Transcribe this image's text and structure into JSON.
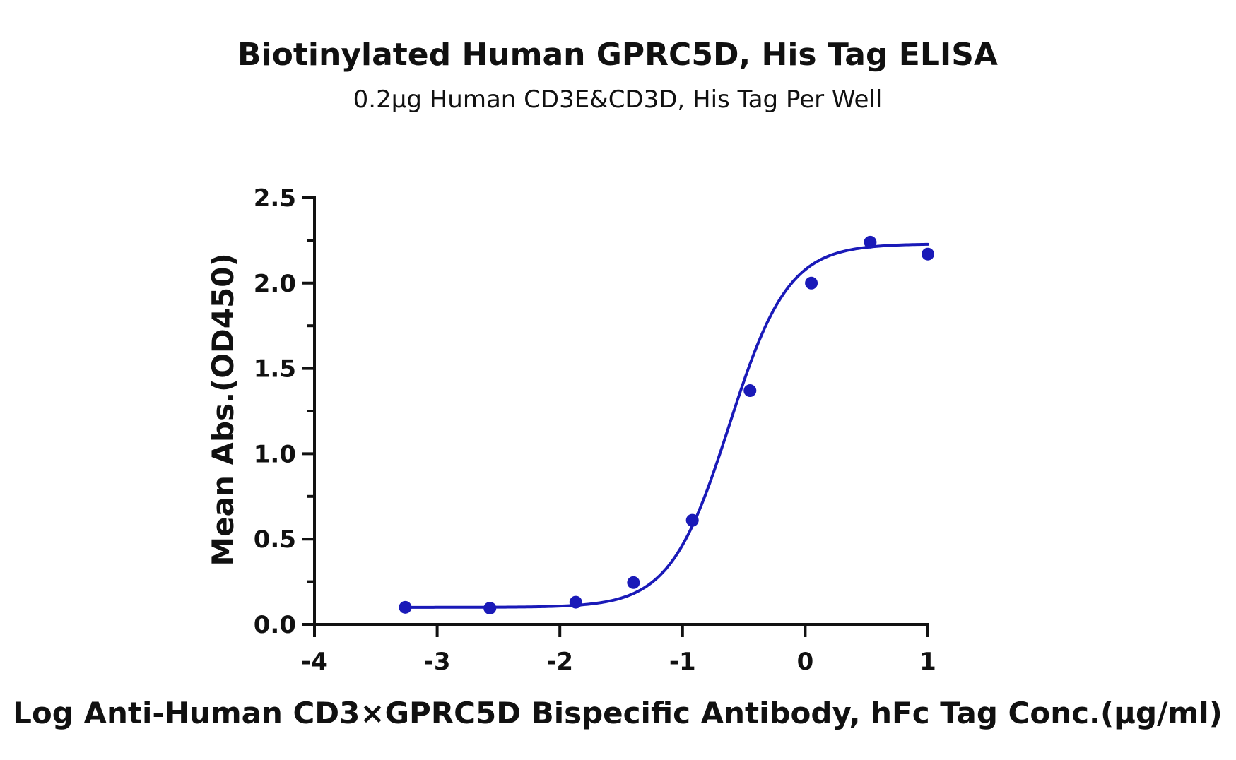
{
  "chart_data": {
    "type": "scatter",
    "title": "Biotinylated Human GPRC5D, His Tag ELISA",
    "subtitle": "0.2μg Human CD3E&CD3D, His Tag Per Well",
    "xlabel": "Log Anti-Human CD3×GPRC5D Bispecific Antibody, hFc Tag Conc.(μg/ml)",
    "ylabel": "Mean Abs.(OD450)",
    "xlim": [
      -4,
      1
    ],
    "ylim": [
      0,
      2.5
    ],
    "x_ticks": [
      "-4",
      "-3",
      "-2",
      "-1",
      "0",
      "1"
    ],
    "y_ticks": [
      "0.0",
      "0.5",
      "1.0",
      "1.5",
      "2.0",
      "2.5"
    ],
    "grid": false,
    "legend": "none",
    "color": "#1a1ab8",
    "series": [
      {
        "x": [
          -3.26,
          -2.57,
          -1.87,
          -1.4,
          -0.92,
          -0.45,
          0.05,
          0.53,
          1.0
        ],
        "y": [
          0.1,
          0.095,
          0.13,
          0.245,
          0.61,
          1.37,
          2.0,
          2.24,
          2.17
        ]
      }
    ],
    "fit_curve": {
      "model": "4PL",
      "bottom": 0.1,
      "top": 2.23,
      "log_ec50": -0.62,
      "hill_slope": 1.8,
      "x_range": [
        -3.26,
        1.0
      ]
    }
  }
}
